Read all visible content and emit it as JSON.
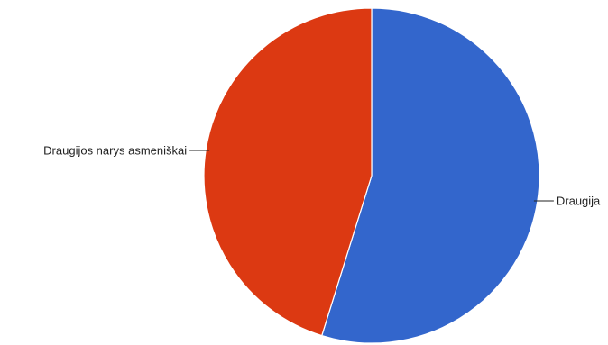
{
  "chart_data": {
    "type": "pie",
    "title": "",
    "slices": [
      {
        "label": "Draugija",
        "value": 54.8,
        "color": "#3366cc"
      },
      {
        "label": "Draugijos narys asmeniškai",
        "value": 45.2,
        "color": "#dc3912"
      }
    ],
    "start_angle_deg": 0,
    "direction": "clockwise",
    "legend": "labeled slices"
  }
}
